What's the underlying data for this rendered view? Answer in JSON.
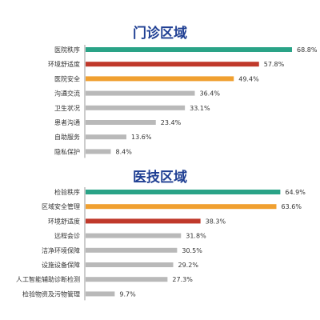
{
  "colors": {
    "title": "#1f3f93",
    "green": "#2aa387",
    "red": "#c0392b",
    "orange": "#f0a030",
    "gray": "#b9b9b9"
  },
  "chart_data": [
    {
      "type": "bar",
      "orientation": "horizontal",
      "title": "门诊区域",
      "categories": [
        "医院秩序",
        "环境舒适度",
        "医院安全",
        "沟通交流",
        "卫生状况",
        "患者沟通",
        "自助服务",
        "隐私保护"
      ],
      "values": [
        68.8,
        57.8,
        49.4,
        36.4,
        33.1,
        23.4,
        13.6,
        8.4
      ],
      "value_labels": [
        "68.8%",
        "57.8%",
        "49.4%",
        "36.4%",
        "33.1%",
        "23.4%",
        "13.6%",
        "8.4%"
      ],
      "bar_colors": [
        "green",
        "red",
        "orange",
        "gray",
        "gray",
        "gray",
        "gray",
        "gray"
      ],
      "xlim": [
        0,
        72
      ],
      "grid": false,
      "legend": "none"
    },
    {
      "type": "bar",
      "orientation": "horizontal",
      "title": "医技区域",
      "categories": [
        "检验秩序",
        "区域安全管理",
        "环境舒适度",
        "远程会诊",
        "洁净环境保障",
        "设施设备保障",
        "人工智能辅助诊断检测",
        "检验物资及污物管理"
      ],
      "values": [
        64.9,
        63.6,
        38.3,
        31.8,
        30.5,
        29.2,
        27.3,
        9.7
      ],
      "value_labels": [
        "64.9%",
        "63.6%",
        "38.3%",
        "31.8%",
        "30.5%",
        "29.2%",
        "27.3%",
        "9.7%"
      ],
      "bar_colors": [
        "green",
        "orange",
        "red",
        "gray",
        "gray",
        "gray",
        "gray",
        "gray"
      ],
      "xlim": [
        0,
        72
      ],
      "grid": false,
      "legend": "none"
    }
  ]
}
